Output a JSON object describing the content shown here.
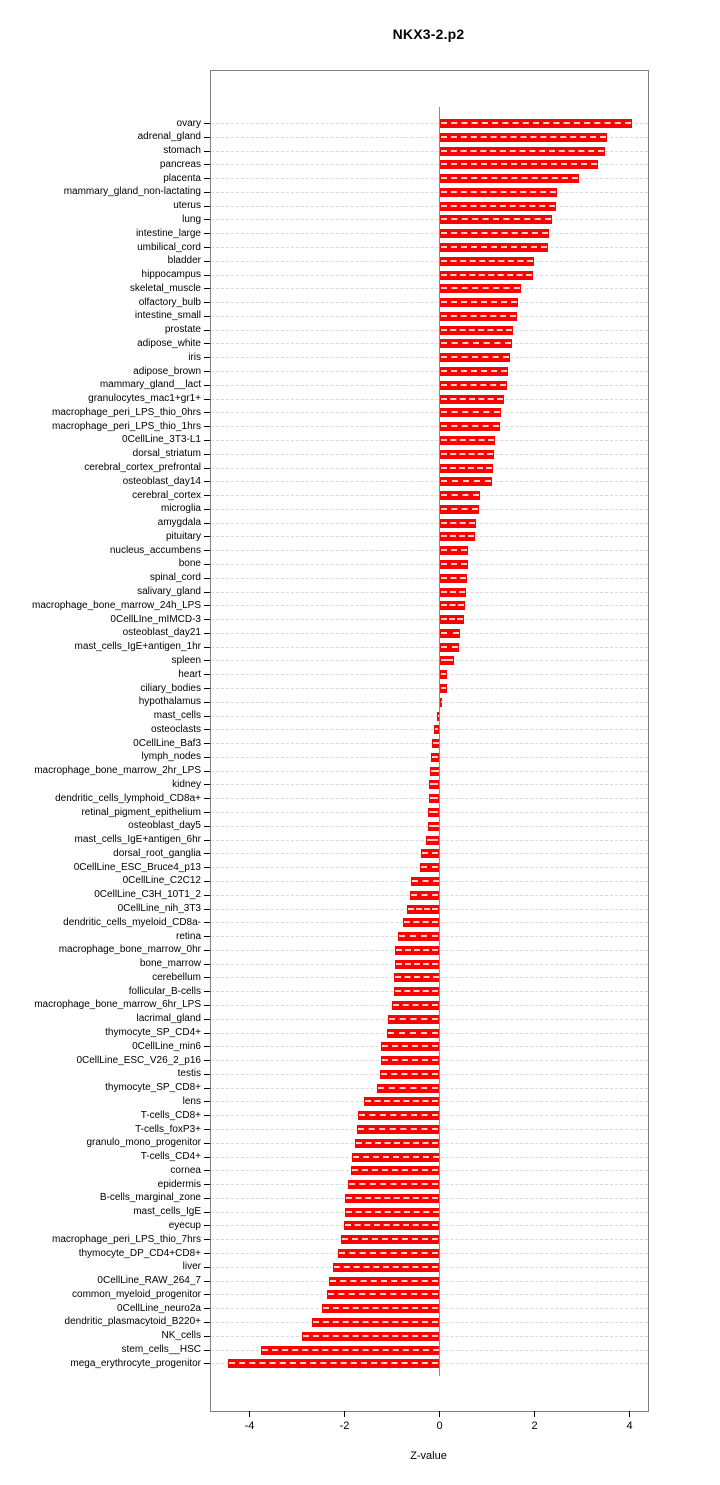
{
  "title": "NKX3-2.p2",
  "chart_data": {
    "type": "bar",
    "orientation": "horizontal",
    "title": "NKX3-2.p2",
    "xlabel": "Z-value",
    "ylabel": "",
    "xlim": [
      -4.8,
      4.4
    ],
    "x_ticks": [
      -4,
      -2,
      0,
      2,
      4
    ],
    "grid": true,
    "legend": "none",
    "bar_color": "#ff0000",
    "zero_line_color": "#00ee00",
    "grid_color": "#d9d9d9",
    "box_color": "#7f7f7f",
    "categories": [
      "ovary",
      "adrenal_gland",
      "stomach",
      "pancreas",
      "placenta",
      "mammary_gland_non-lactating",
      "uterus",
      "lung",
      "intestine_large",
      "umbilical_cord",
      "bladder",
      "hippocampus",
      "skeletal_muscle",
      "olfactory_bulb",
      "intestine_small",
      "prostate",
      "adipose_white",
      "iris",
      "adipose_brown",
      "mammary_gland__lact",
      "granulocytes_mac1+gr1+",
      "macrophage_peri_LPS_thio_0hrs",
      "macrophage_peri_LPS_thio_1hrs",
      "0CellLine_3T3-L1",
      "dorsal_striatum",
      "cerebral_cortex_prefrontal",
      "osteoblast_day14",
      "cerebral_cortex",
      "microglia",
      "amygdala",
      "pituitary",
      "nucleus_accumbens",
      "bone",
      "spinal_cord",
      "salivary_gland",
      "macrophage_bone_marrow_24h_LPS",
      "0CellLIne_mIMCD-3",
      "osteoblast_day21",
      "mast_cells_IgE+antigen_1hr",
      "spleen",
      "heart",
      "ciliary_bodies",
      "hypothalamus",
      "mast_cells",
      "osteoclasts",
      "0CellLine_Baf3",
      "lymph_nodes",
      "macrophage_bone_marrow_2hr_LPS",
      "kidney",
      "dendritic_cells_lymphoid_CD8a+",
      "retinal_pigment_epithelium",
      "osteoblast_day5",
      "mast_cells_IgE+antigen_6hr",
      "dorsal_root_ganglia",
      "0CellLine_ESC_Bruce4_p13",
      "0CellLine_C2C12",
      "0CellLine_C3H_10T1_2",
      "0CellLine_nih_3T3",
      "dendritic_cells_myeloid_CD8a-",
      "retina",
      "macrophage_bone_marrow_0hr",
      "bone_marrow",
      "cerebellum",
      "follicular_B-cells",
      "macrophage_bone_marrow_6hr_LPS",
      "lacrimal_gland",
      "thymocyte_SP_CD4+",
      "0CellLine_min6",
      "0CellLine_ESC_V26_2_p16",
      "testis",
      "thymocyte_SP_CD8+",
      "lens",
      "T-cells_CD8+",
      "T-cells_foxP3+",
      "granulo_mono_progenitor",
      "T-cells_CD4+",
      "cornea",
      "epidermis",
      "B-cells_marginal_zone",
      "mast_cells_IgE",
      "eyecup",
      "macrophage_peri_LPS_thio_7hrs",
      "thymocyte_DP_CD4+CD8+",
      "liver",
      "0CellLine_RAW_264_7",
      "common_myeloid_progenitor",
      "0CellLine_neuro2a",
      "dendritic_plasmacytoid_B220+",
      "NK_cells",
      "stem_cells__HSC",
      "mega_erythrocyte_progenitor"
    ],
    "values": [
      4.05,
      3.53,
      3.49,
      3.33,
      2.93,
      2.48,
      2.46,
      2.37,
      2.31,
      2.28,
      1.99,
      1.96,
      1.71,
      1.66,
      1.64,
      1.54,
      1.52,
      1.49,
      1.44,
      1.43,
      1.36,
      1.3,
      1.27,
      1.17,
      1.15,
      1.12,
      1.1,
      0.86,
      0.83,
      0.77,
      0.74,
      0.6,
      0.59,
      0.58,
      0.55,
      0.54,
      0.51,
      0.44,
      0.41,
      0.3,
      0.16,
      0.15,
      0.05,
      -0.06,
      -0.12,
      -0.15,
      -0.17,
      -0.2,
      -0.22,
      -0.23,
      -0.24,
      -0.25,
      -0.29,
      -0.39,
      -0.41,
      -0.6,
      -0.62,
      -0.69,
      -0.77,
      -0.88,
      -0.93,
      -0.94,
      -0.95,
      -0.96,
      -0.99,
      -1.09,
      -1.11,
      -1.23,
      -1.24,
      -1.26,
      -1.32,
      -1.59,
      -1.71,
      -1.73,
      -1.78,
      -1.85,
      -1.87,
      -1.92,
      -1.99,
      -2.0,
      -2.02,
      -2.08,
      -2.13,
      -2.24,
      -2.33,
      -2.36,
      -2.48,
      -2.69,
      -2.89,
      -3.75,
      -4.46
    ]
  }
}
